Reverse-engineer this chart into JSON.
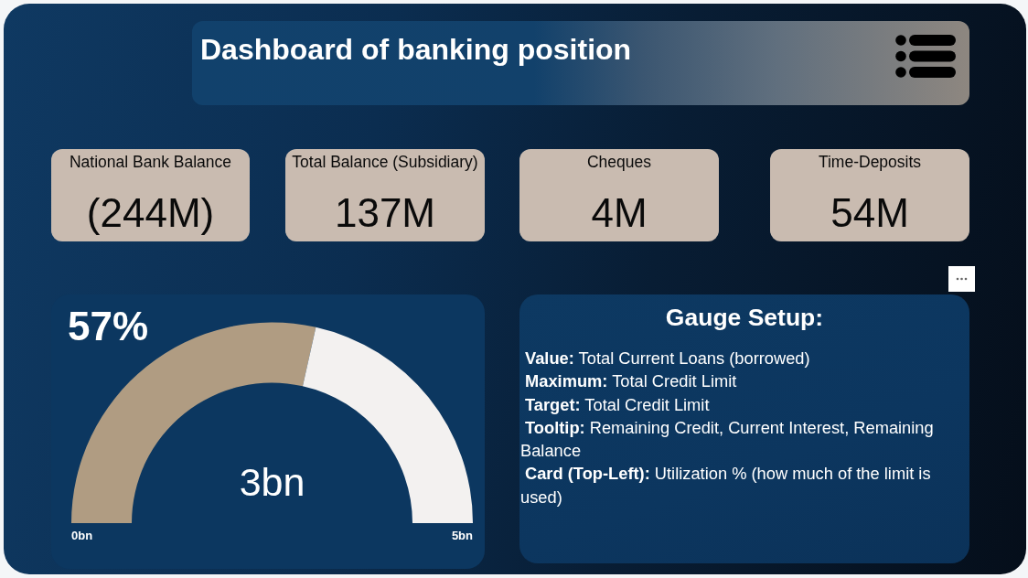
{
  "chart_data": [
    {
      "type": "other",
      "title": "Dashboard of banking position"
    },
    {
      "type": "other",
      "title": "National Bank Balance",
      "annotations": [
        "(244M)"
      ]
    },
    {
      "type": "other",
      "title": "Total Balance (Subsidiary)",
      "annotations": [
        "137M"
      ]
    },
    {
      "type": "other",
      "title": "Cheques",
      "annotations": [
        "4M"
      ]
    },
    {
      "type": "other",
      "title": "Time-Deposits",
      "annotations": [
        "54M"
      ]
    },
    {
      "type": "donut",
      "title": "57%",
      "categories": [
        null,
        null
      ],
      "values": [
        57,
        43
      ],
      "colors": [
        "#b09c82",
        "#f3f1f0"
      ],
      "annotations": [
        "3bn",
        "0bn",
        "5bn"
      ]
    },
    {
      "type": "other",
      "title": "Gauge Setup:",
      "annotations": [
        "Value: Total Current Loans (borrowed)",
        "Maximum: Total Credit Limit",
        "Target: Total Credit Limit",
        "Tooltip: Remaining Credit, Current Interest, Remaining Balance",
        "Card (Top-Left): Utilization % (how much of the limit is used)"
      ]
    }
  ]
}
